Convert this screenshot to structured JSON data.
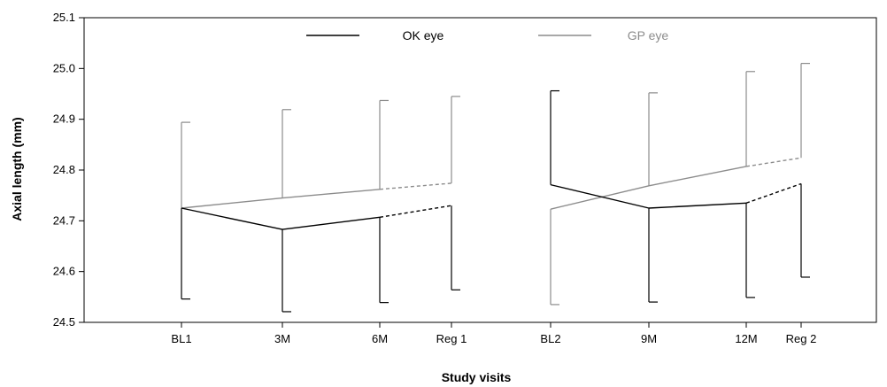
{
  "chart_data": {
    "type": "line",
    "title": "",
    "xlabel": "Study visits",
    "ylabel": "Axial length (mm)",
    "ylim": [
      24.5,
      25.1
    ],
    "yticks": [
      "24.5",
      "24.6",
      "24.7",
      "24.8",
      "24.9",
      "25.0",
      "25.1"
    ],
    "categories": [
      "BL1",
      "3M",
      "6M",
      "Reg 1",
      "BL2",
      "9M",
      "12M",
      "Reg 2"
    ],
    "grid": false,
    "legend_position": "top",
    "series": [
      {
        "name": "OK eye",
        "color": "#000000",
        "error_direction": "down",
        "values": [
          24.725,
          24.683,
          24.707,
          24.73,
          24.771,
          24.725,
          24.735,
          24.773
        ],
        "error_ends": [
          24.546,
          24.521,
          24.539,
          24.564,
          24.956,
          24.54,
          24.549,
          24.589
        ]
      },
      {
        "name": "GP eye",
        "color": "#8c8c8c",
        "error_direction": "up",
        "values": [
          24.725,
          24.745,
          24.762,
          24.774,
          24.723,
          24.769,
          24.807,
          24.824
        ],
        "error_ends": [
          24.894,
          24.919,
          24.937,
          24.945,
          24.535,
          24.952,
          24.994,
          25.01
        ]
      }
    ],
    "segments": [
      {
        "from": 0,
        "to": 1,
        "style": "solid"
      },
      {
        "from": 1,
        "to": 2,
        "style": "solid"
      },
      {
        "from": 2,
        "to": 3,
        "style": "dashed"
      },
      {
        "from": 4,
        "to": 5,
        "style": "solid"
      },
      {
        "from": 5,
        "to": 6,
        "style": "solid"
      },
      {
        "from": 6,
        "to": 7,
        "style": "dashed"
      }
    ]
  }
}
